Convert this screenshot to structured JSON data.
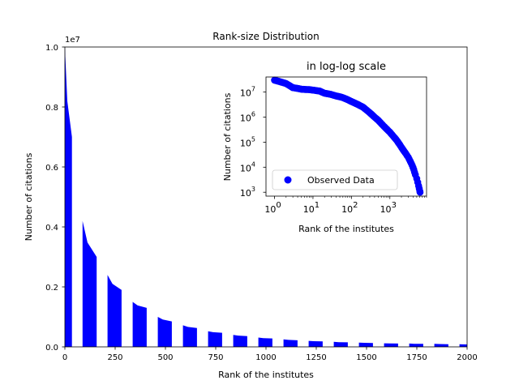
{
  "chart_data": [
    {
      "type": "bar",
      "title": "Rank-size Distribution",
      "xlabel": "Rank of the institutes",
      "ylabel": "Number of citations",
      "y_scale_label": "1e7",
      "xlim": [
        0,
        2000
      ],
      "ylim": [
        0,
        1.0
      ],
      "x_ticks": [
        0,
        250,
        500,
        750,
        1000,
        1250,
        1500,
        1750,
        2000
      ],
      "x_tick_labels": [
        "0",
        "250",
        "500",
        "750",
        "1000",
        "1250",
        "1500",
        "1750",
        "2000"
      ],
      "y_ticks": [
        0,
        0.2,
        0.4,
        0.6,
        0.8,
        1.0
      ],
      "y_tick_labels": [
        "0.0",
        "0.2",
        "0.4",
        "0.6",
        "0.8",
        "1.0"
      ],
      "color": "#0000ff",
      "grid": false,
      "bar_groups": [
        {
          "x_start": 0,
          "x_end": 35,
          "value_start": 1.0,
          "value_end": 0.7
        },
        {
          "x_start": 88,
          "x_end": 158,
          "value_start": 0.42,
          "value_end": 0.3
        },
        {
          "x_start": 212,
          "x_end": 282,
          "value_start": 0.24,
          "value_end": 0.19
        },
        {
          "x_start": 337,
          "x_end": 407,
          "value_start": 0.15,
          "value_end": 0.13
        },
        {
          "x_start": 462,
          "x_end": 532,
          "value_start": 0.1,
          "value_end": 0.085
        },
        {
          "x_start": 587,
          "x_end": 657,
          "value_start": 0.072,
          "value_end": 0.063
        },
        {
          "x_start": 712,
          "x_end": 782,
          "value_start": 0.052,
          "value_end": 0.047
        },
        {
          "x_start": 837,
          "x_end": 907,
          "value_start": 0.04,
          "value_end": 0.036
        },
        {
          "x_start": 962,
          "x_end": 1032,
          "value_start": 0.031,
          "value_end": 0.028
        },
        {
          "x_start": 1087,
          "x_end": 1157,
          "value_start": 0.025,
          "value_end": 0.022
        },
        {
          "x_start": 1212,
          "x_end": 1282,
          "value_start": 0.02,
          "value_end": 0.018
        },
        {
          "x_start": 1337,
          "x_end": 1407,
          "value_start": 0.017,
          "value_end": 0.015
        },
        {
          "x_start": 1462,
          "x_end": 1532,
          "value_start": 0.014,
          "value_end": 0.013
        },
        {
          "x_start": 1587,
          "x_end": 1657,
          "value_start": 0.012,
          "value_end": 0.011
        },
        {
          "x_start": 1712,
          "x_end": 1782,
          "value_start": 0.011,
          "value_end": 0.01
        },
        {
          "x_start": 1837,
          "x_end": 1907,
          "value_start": 0.01,
          "value_end": 0.009
        },
        {
          "x_start": 1962,
          "x_end": 2000,
          "value_start": 0.009,
          "value_end": 0.008
        }
      ]
    },
    {
      "type": "scatter",
      "title": "in log-log scale",
      "xlabel": "Rank of the institutes",
      "ylabel": "Number of citations",
      "x_scale": "log",
      "y_scale": "log",
      "xlim": [
        0.6,
        9000
      ],
      "ylim": [
        700,
        40000000
      ],
      "x_ticks": [
        1,
        10,
        100,
        1000
      ],
      "x_tick_base": [
        "10",
        "10",
        "10",
        "10"
      ],
      "x_tick_exp": [
        "0",
        "1",
        "2",
        "3"
      ],
      "y_ticks": [
        1000,
        10000,
        100000,
        1000000,
        10000000
      ],
      "y_tick_base": [
        "10",
        "10",
        "10",
        "10",
        "10"
      ],
      "y_tick_exp": [
        "3",
        "4",
        "5",
        "6",
        "7"
      ],
      "color": "#0000ff",
      "legend": {
        "label": "Observed Data",
        "position": "lower-left"
      },
      "series": [
        {
          "name": "Observed Data",
          "points": [
            [
              1,
              30000000
            ],
            [
              2,
              22000000
            ],
            [
              3,
              15000000
            ],
            [
              4,
              14000000
            ],
            [
              5,
              13000000
            ],
            [
              6,
              12800000
            ],
            [
              8,
              12500000
            ],
            [
              10,
              12000000
            ],
            [
              12,
              11500000
            ],
            [
              15,
              11000000
            ],
            [
              20,
              9000000
            ],
            [
              25,
              8500000
            ],
            [
              30,
              8000000
            ],
            [
              40,
              7000000
            ],
            [
              50,
              6500000
            ],
            [
              60,
              6000000
            ],
            [
              80,
              5000000
            ],
            [
              100,
              4200000
            ],
            [
              130,
              3500000
            ],
            [
              160,
              3000000
            ],
            [
              200,
              2500000
            ],
            [
              250,
              1900000
            ],
            [
              300,
              1500000
            ],
            [
              400,
              1000000
            ],
            [
              500,
              750000
            ],
            [
              600,
              550000
            ],
            [
              800,
              350000
            ],
            [
              1000,
              250000
            ],
            [
              1200,
              180000
            ],
            [
              1500,
              120000
            ],
            [
              1800,
              80000
            ],
            [
              2200,
              50000
            ],
            [
              2600,
              35000
            ],
            [
              3000,
              25000
            ],
            [
              3400,
              17000
            ],
            [
              3800,
              12000
            ],
            [
              4200,
              8000
            ],
            [
              4600,
              5000
            ],
            [
              5000,
              3500
            ],
            [
              5300,
              2500
            ],
            [
              5600,
              1800
            ],
            [
              5800,
              1400
            ],
            [
              6000,
              1100
            ],
            [
              6100,
              1000
            ]
          ]
        }
      ]
    }
  ]
}
